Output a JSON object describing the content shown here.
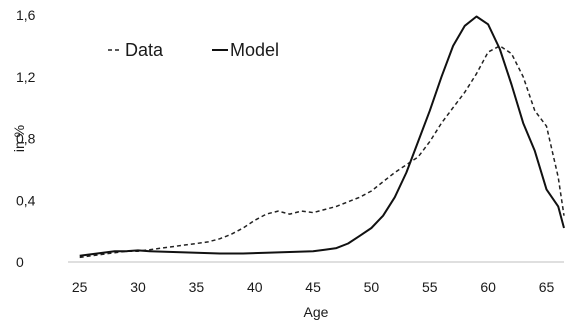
{
  "chart_data": {
    "type": "line",
    "title": "",
    "xlabel": "Age",
    "ylabel": "in %",
    "xlim": [
      24,
      66.5
    ],
    "ylim": [
      0,
      1.6
    ],
    "x_ticks": [
      25,
      30,
      35,
      40,
      45,
      50,
      55,
      60,
      65
    ],
    "y_ticks": [
      {
        "value": 0,
        "label": "0"
      },
      {
        "value": 0.4,
        "label": "0,4"
      },
      {
        "value": 0.8,
        "label": "0,8"
      },
      {
        "value": 1.2,
        "label": "1,2"
      },
      {
        "value": 1.6,
        "label": "1,6"
      }
    ],
    "grid": false,
    "legend_position": "top-left",
    "series": [
      {
        "name": "Data",
        "style": "dashed",
        "color": "#222222",
        "points": [
          [
            25,
            0.03
          ],
          [
            26,
            0.04
          ],
          [
            27,
            0.05
          ],
          [
            28,
            0.06
          ],
          [
            29,
            0.07
          ],
          [
            30,
            0.07
          ],
          [
            31,
            0.08
          ],
          [
            32,
            0.09
          ],
          [
            33,
            0.1
          ],
          [
            34,
            0.11
          ],
          [
            35,
            0.12
          ],
          [
            36,
            0.13
          ],
          [
            37,
            0.15
          ],
          [
            38,
            0.18
          ],
          [
            39,
            0.22
          ],
          [
            40,
            0.27
          ],
          [
            41,
            0.31
          ],
          [
            42,
            0.33
          ],
          [
            43,
            0.31
          ],
          [
            44,
            0.33
          ],
          [
            45,
            0.32
          ],
          [
            46,
            0.34
          ],
          [
            47,
            0.36
          ],
          [
            48,
            0.39
          ],
          [
            49,
            0.42
          ],
          [
            50,
            0.46
          ],
          [
            51,
            0.52
          ],
          [
            52,
            0.58
          ],
          [
            53,
            0.63
          ],
          [
            54,
            0.68
          ],
          [
            55,
            0.78
          ],
          [
            56,
            0.9
          ],
          [
            57,
            1.0
          ],
          [
            58,
            1.1
          ],
          [
            59,
            1.22
          ],
          [
            60,
            1.36
          ],
          [
            61,
            1.4
          ],
          [
            62,
            1.35
          ],
          [
            63,
            1.2
          ],
          [
            64,
            0.98
          ],
          [
            65,
            0.88
          ],
          [
            66,
            0.55
          ],
          [
            66.5,
            0.3
          ]
        ]
      },
      {
        "name": "Model",
        "style": "solid",
        "color": "#111111",
        "points": [
          [
            25,
            0.04
          ],
          [
            26,
            0.05
          ],
          [
            27,
            0.06
          ],
          [
            28,
            0.07
          ],
          [
            29,
            0.07
          ],
          [
            30,
            0.075
          ],
          [
            31,
            0.07
          ],
          [
            33,
            0.065
          ],
          [
            35,
            0.06
          ],
          [
            37,
            0.055
          ],
          [
            39,
            0.055
          ],
          [
            41,
            0.06
          ],
          [
            43,
            0.065
          ],
          [
            45,
            0.07
          ],
          [
            46,
            0.08
          ],
          [
            47,
            0.09
          ],
          [
            48,
            0.12
          ],
          [
            49,
            0.17
          ],
          [
            50,
            0.22
          ],
          [
            51,
            0.3
          ],
          [
            52,
            0.42
          ],
          [
            53,
            0.58
          ],
          [
            54,
            0.78
          ],
          [
            55,
            0.98
          ],
          [
            56,
            1.2
          ],
          [
            57,
            1.4
          ],
          [
            58,
            1.53
          ],
          [
            59,
            1.59
          ],
          [
            60,
            1.54
          ],
          [
            61,
            1.38
          ],
          [
            62,
            1.15
          ],
          [
            63,
            0.9
          ],
          [
            64,
            0.72
          ],
          [
            65,
            0.47
          ],
          [
            66,
            0.36
          ],
          [
            66.5,
            0.22
          ]
        ]
      }
    ]
  }
}
